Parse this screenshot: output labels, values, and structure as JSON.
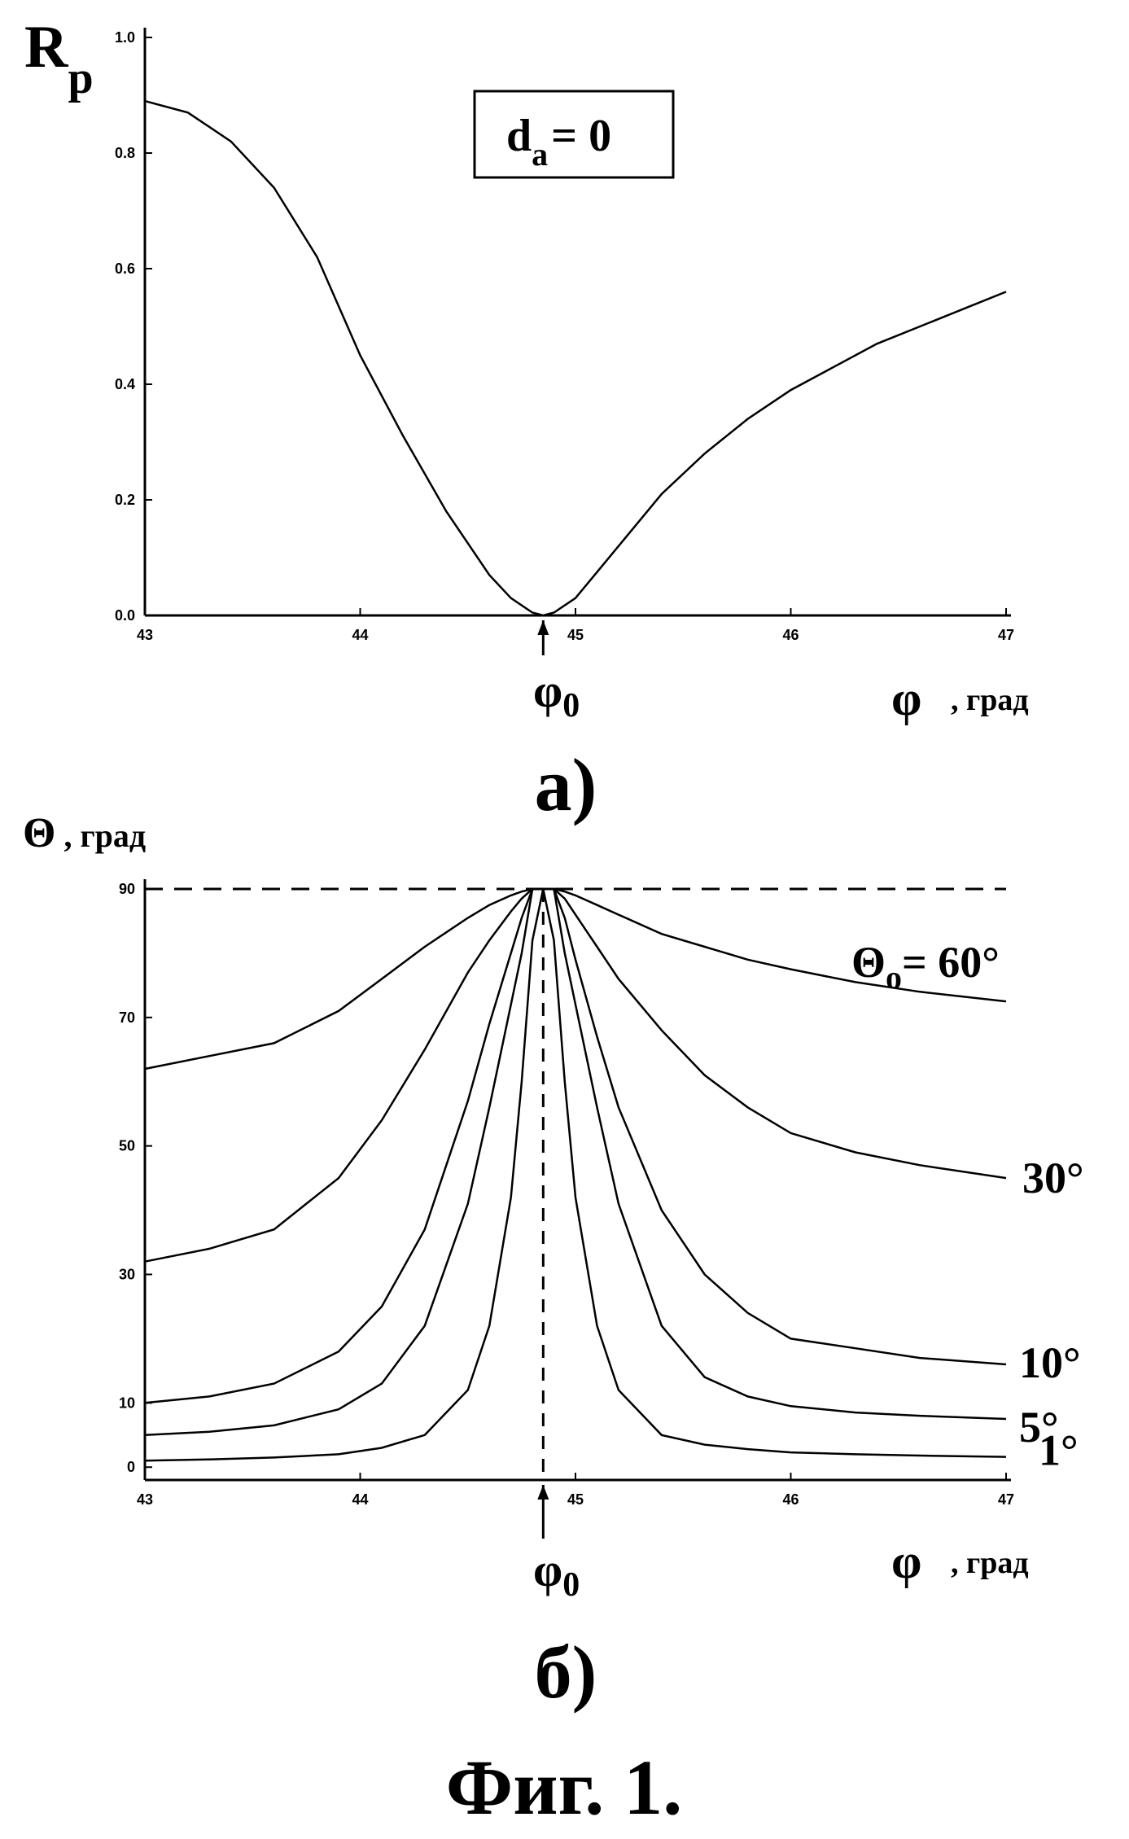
{
  "figure_caption": "Фиг. 1.",
  "chart_data": [
    {
      "type": "line",
      "panel_label": "а)",
      "ylabel_main": "R",
      "ylabel_sub": "p",
      "xlabel_symbol": "φ",
      "xlabel_unit": ", град",
      "annotation": {
        "main": "d",
        "sub": "a",
        "rest": "= 0"
      },
      "marker": {
        "label_main": "φ",
        "label_sub": "0",
        "x": 44.85
      },
      "xlim": [
        43,
        47
      ],
      "ylim": [
        0,
        1.0
      ],
      "xticks": [
        "43",
        "44",
        "45",
        "46",
        "47"
      ],
      "yticks": [
        "0.0",
        "0.2",
        "0.4",
        "0.6",
        "0.8",
        "1.0"
      ],
      "series": [
        {
          "x": [
            43.0,
            43.2,
            43.4,
            43.6,
            43.8,
            44.0,
            44.2,
            44.4,
            44.6,
            44.7,
            44.8,
            44.85,
            44.9,
            45.0,
            45.2,
            45.4,
            45.6,
            45.8,
            46.0,
            46.2,
            46.4,
            46.6,
            46.8,
            47.0
          ],
          "values": [
            0.89,
            0.87,
            0.82,
            0.74,
            0.62,
            0.45,
            0.31,
            0.18,
            0.07,
            0.03,
            0.005,
            0.0,
            0.005,
            0.03,
            0.12,
            0.21,
            0.28,
            0.34,
            0.39,
            0.43,
            0.47,
            0.5,
            0.53,
            0.56
          ]
        }
      ]
    },
    {
      "type": "line",
      "panel_label": "б)",
      "ylabel_symbol": "Θ",
      "ylabel_unit": ", град",
      "xlabel_symbol": "φ",
      "xlabel_unit": ", град",
      "marker": {
        "label_main": "φ",
        "label_sub": "0",
        "x": 44.85
      },
      "reference_line": 90,
      "xlim": [
        43,
        47
      ],
      "ylim": [
        -2,
        90
      ],
      "xticks": [
        "43",
        "44",
        "45",
        "46",
        "47"
      ],
      "yticks": [
        "0",
        "10",
        "30",
        "50",
        "70",
        "90"
      ],
      "ytick_values": [
        0,
        10,
        30,
        50,
        70,
        90
      ],
      "x": [
        43.0,
        43.3,
        43.6,
        43.9,
        44.1,
        44.3,
        44.5,
        44.6,
        44.7,
        44.75,
        44.8,
        44.85,
        44.9,
        44.95,
        45.0,
        45.1,
        45.2,
        45.4,
        45.6,
        45.8,
        46.0,
        46.3,
        46.6,
        47.0
      ],
      "series": [
        {
          "name": "Θ₀ = 60°",
          "label_main": "Θ",
          "label_sub": "o",
          "label_rest": "= 60°",
          "values": [
            62,
            64,
            66,
            71,
            76,
            81,
            85.5,
            87.5,
            89,
            89.6,
            90,
            90,
            90,
            89.6,
            89,
            87.5,
            86,
            83,
            81,
            79,
            77.5,
            75.5,
            74,
            72.5
          ]
        },
        {
          "name": "30°",
          "label_main": "30°",
          "values": [
            32,
            34,
            37,
            45,
            54,
            65,
            77,
            82,
            86.5,
            88.5,
            90,
            90,
            90,
            88.5,
            86,
            81,
            76,
            68,
            61,
            56,
            52,
            49,
            47,
            45
          ]
        },
        {
          "name": "10°",
          "label_main": "10°",
          "values": [
            10,
            11,
            13,
            18,
            25,
            37,
            57,
            69,
            80,
            85.5,
            90,
            90,
            90,
            85.5,
            79,
            67,
            56,
            40,
            30,
            24,
            20,
            18.5,
            17,
            16
          ]
        },
        {
          "name": "5°",
          "label_main": "5°",
          "values": [
            5,
            5.5,
            6.5,
            9,
            13,
            22,
            41,
            56,
            72,
            80,
            90,
            90,
            90,
            80,
            72,
            56,
            41,
            22,
            14,
            11,
            9.5,
            8.5,
            8,
            7.5
          ]
        },
        {
          "name": "1°",
          "label_main": "1°",
          "values": [
            1,
            1.2,
            1.5,
            2,
            3,
            5,
            12,
            22,
            42,
            60,
            82,
            90,
            82,
            60,
            42,
            22,
            12,
            5,
            3.5,
            2.8,
            2.3,
            2,
            1.8,
            1.6
          ]
        }
      ]
    }
  ]
}
